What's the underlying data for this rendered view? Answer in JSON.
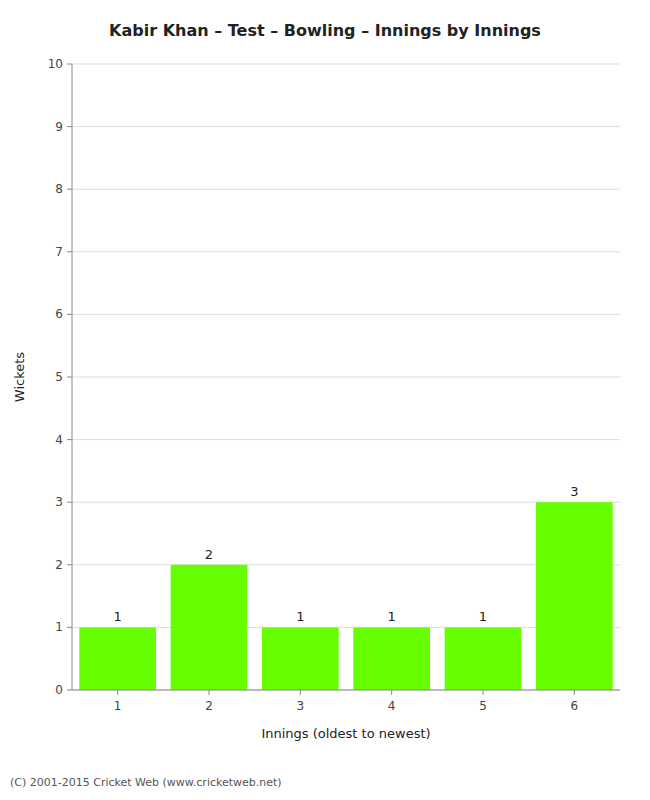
{
  "chart_data": {
    "type": "bar",
    "title": "Kabir Khan – Test – Bowling – Innings by Innings",
    "x_label": "Innings (oldest to newest)",
    "y_label": "Wickets",
    "categories": [
      1,
      2,
      3,
      4,
      5,
      6
    ],
    "values": [
      1,
      2,
      1,
      1,
      1,
      3
    ],
    "color": "#66ff00",
    "ylim": [
      0,
      10
    ],
    "yticks": [
      0,
      1,
      2,
      3,
      4,
      5,
      6,
      7,
      8,
      9,
      10
    ],
    "grid": true,
    "data_labels": true,
    "annotations": [
      "(C) 2001-2015 Cricket Web (www.cricketweb.net)"
    ]
  }
}
